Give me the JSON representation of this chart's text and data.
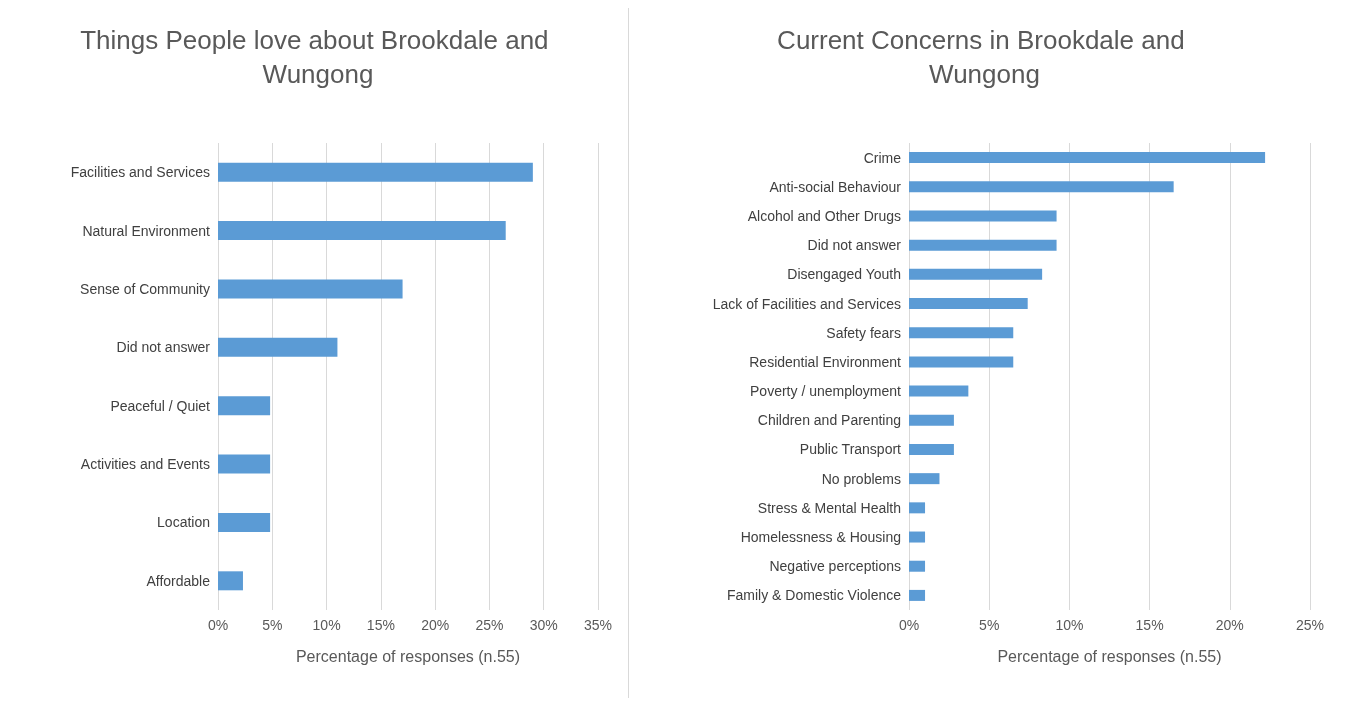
{
  "chart_data": [
    {
      "type": "bar",
      "orientation": "horizontal",
      "title": "Things People love about Brookdale and Wungong",
      "xlabel": "Percentage of responses (n.55)",
      "categories": [
        "Facilities and Services",
        "Natural Environment",
        "Sense of Community",
        "Did not answer",
        "Peaceful / Quiet",
        "Activities and Events",
        "Location",
        "Affordable"
      ],
      "values": [
        29,
        26.5,
        17,
        11,
        4.8,
        4.8,
        4.8,
        2.3
      ],
      "color": "#5b9bd5",
      "xlim": [
        0,
        35
      ],
      "xticks": [
        {
          "value": 0,
          "label": "0%"
        },
        {
          "value": 5,
          "label": "5%"
        },
        {
          "value": 10,
          "label": "10%"
        },
        {
          "value": 15,
          "label": "15%"
        },
        {
          "value": 20,
          "label": "20%"
        },
        {
          "value": 25,
          "label": "25%"
        },
        {
          "value": 30,
          "label": "30%"
        },
        {
          "value": 35,
          "label": "35%"
        }
      ],
      "grid": "x"
    },
    {
      "type": "bar",
      "orientation": "horizontal",
      "title": "Current Concerns in Brookdale and Wungong",
      "xlabel": "Percentage of responses (n.55)",
      "categories": [
        "Crime",
        "Anti-social Behaviour",
        "Alcohol and Other Drugs",
        "Did not answer",
        "Disengaged Youth",
        "Lack of Facilities and Services",
        "Safety fears",
        "Residential Environment",
        "Poverty / unemployment",
        "Children and Parenting",
        "Public Transport",
        "No problems",
        "Stress & Mental Health",
        "Homelessness & Housing",
        "Negative perceptions",
        "Family & Domestic Violence"
      ],
      "values": [
        22.2,
        16.5,
        9.2,
        9.2,
        8.3,
        7.4,
        6.5,
        6.5,
        3.7,
        2.8,
        2.8,
        1.9,
        1,
        1,
        1,
        1
      ],
      "color": "#5b9bd5",
      "xlim": [
        0,
        25
      ],
      "xticks": [
        {
          "value": 0,
          "label": "0%"
        },
        {
          "value": 5,
          "label": "5%"
        },
        {
          "value": 10,
          "label": "10%"
        },
        {
          "value": 15,
          "label": "15%"
        },
        {
          "value": 20,
          "label": "20%"
        },
        {
          "value": 25,
          "label": "25%"
        }
      ],
      "grid": "x"
    }
  ]
}
